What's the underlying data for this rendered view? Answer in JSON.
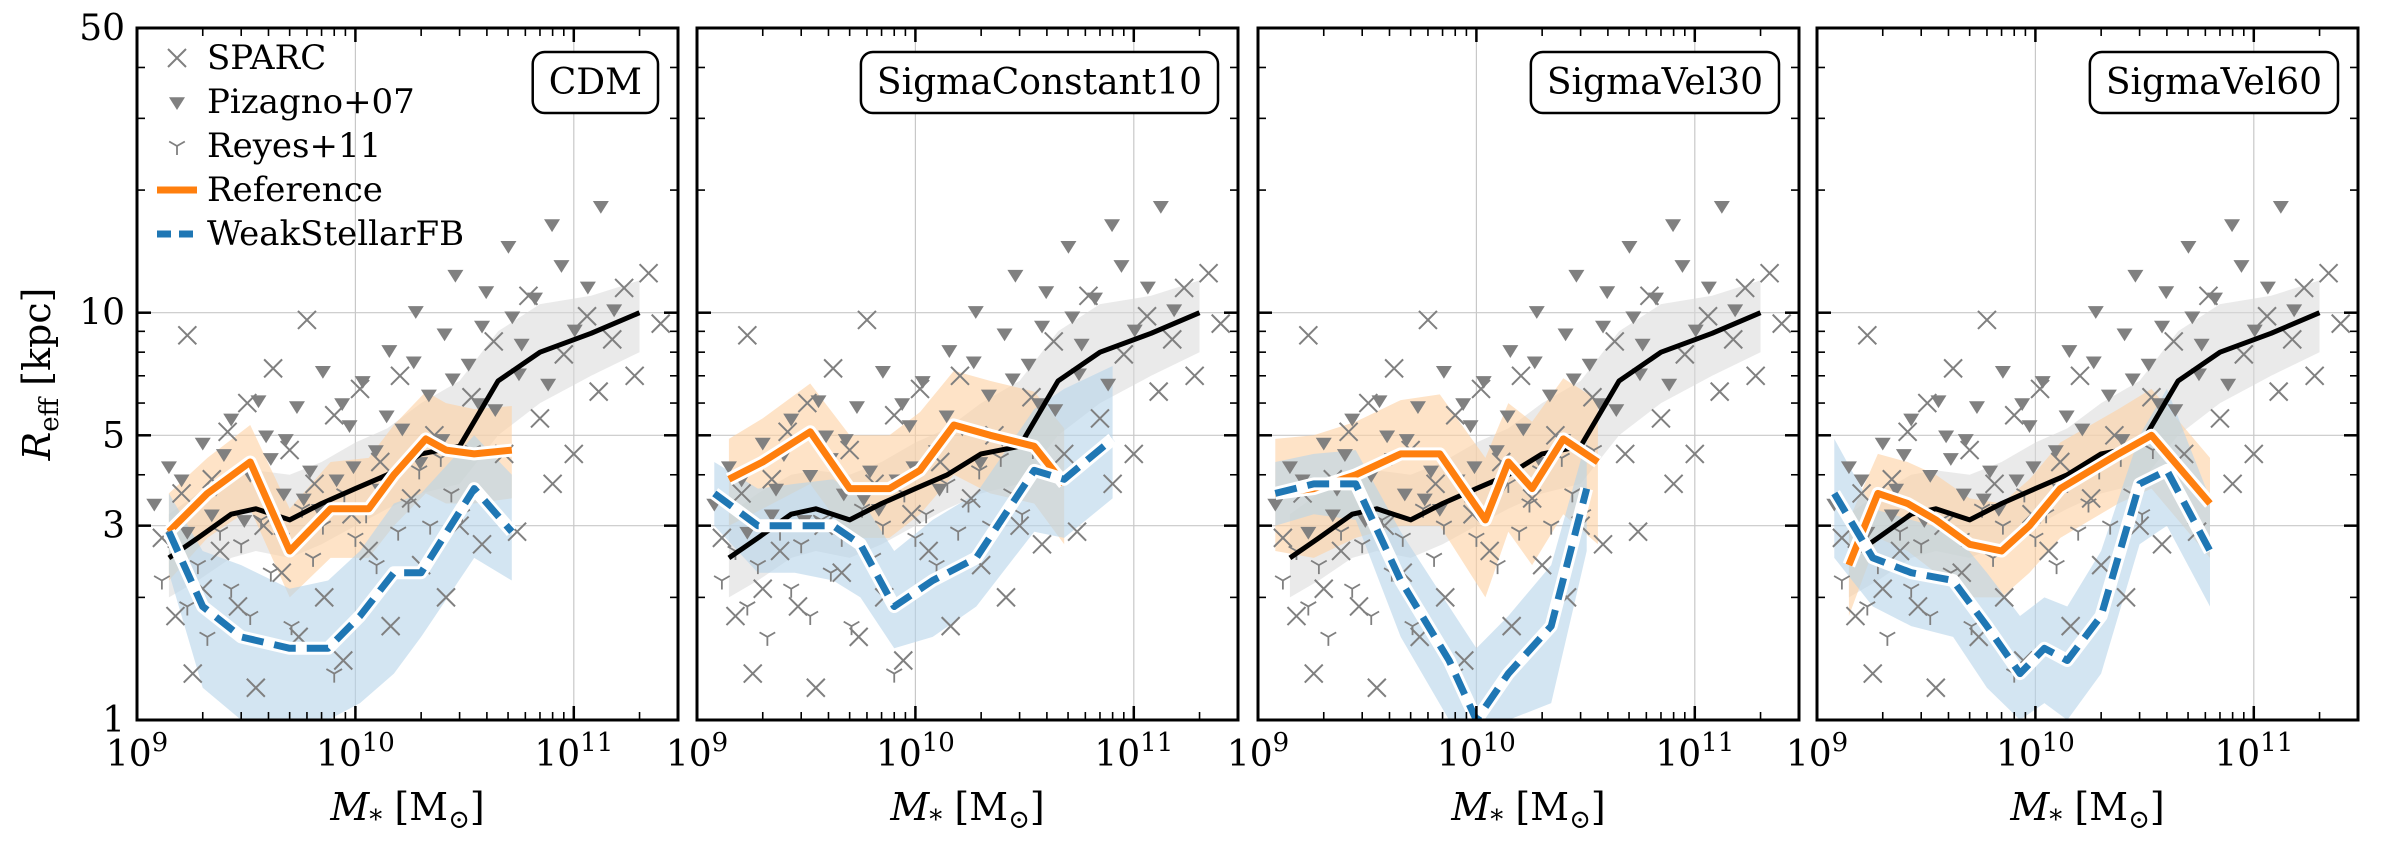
{
  "figure": {
    "ylabel": "R",
    "ylabel_sub": "eff",
    "ylabel_unit": "[kpc]",
    "xlabel_main": "M",
    "xlabel_sub": "*",
    "xlabel_unit": "[M",
    "xlabel_unit_sym": "⊙",
    "xlabel_unit_close": "]"
  },
  "legend": [
    {
      "label": "SPARC",
      "marker": "x",
      "color": "#808080"
    },
    {
      "label": "Pizagno+07",
      "marker": "triangle-down",
      "color": "#808080"
    },
    {
      "label": "Reyes+11",
      "marker": "tri-up",
      "color": "#808080"
    },
    {
      "label": "Reference",
      "marker": "line",
      "color": "#ff7f0e"
    },
    {
      "label": "WeakStellarFB",
      "marker": "dashed-line",
      "color": "#1f77b4"
    }
  ],
  "colors": {
    "reference": "#ff7f0e",
    "weakfb": "#1f77b4",
    "observed": "#000000",
    "scatter": "#808080",
    "ref_band": "#fdd0a2",
    "weak_band": "#b5d3ea",
    "obs_band": "#d9d9d9"
  },
  "chart_data": {
    "type": "line",
    "xscale": "log",
    "yscale": "log",
    "xlim": [
      1000000000.0,
      300000000000.0
    ],
    "ylim": [
      1,
      50
    ],
    "xticks": [
      {
        "value": 1000000000.0,
        "label": "10^9"
      },
      {
        "value": 10000000000.0,
        "label": "10^10"
      },
      {
        "value": 100000000000.0,
        "label": "10^11"
      }
    ],
    "yticks": [
      {
        "value": 1,
        "label": "1"
      },
      {
        "value": 3,
        "label": "3"
      },
      {
        "value": 5,
        "label": "5"
      },
      {
        "value": 10,
        "label": "10"
      },
      {
        "value": 50,
        "label": "50"
      }
    ],
    "observed_median": {
      "x": [
        1400000000.0,
        1900000000.0,
        2700000000.0,
        3500000000.0,
        5000000000.0,
        7000000000.0,
        10000000000.0,
        14000000000.0,
        20000000000.0,
        30000000000.0,
        45000000000.0,
        70000000000.0,
        120000000000.0,
        200000000000.0
      ],
      "y": [
        2.5,
        2.8,
        3.2,
        3.3,
        3.1,
        3.4,
        3.7,
        4.0,
        4.5,
        4.7,
        6.8,
        8.0,
        8.9,
        10.0
      ],
      "band_lo": [
        2.0,
        2.2,
        2.5,
        2.6,
        2.5,
        2.7,
        3.0,
        3.3,
        3.6,
        3.8,
        5.0,
        6.0,
        7.0,
        8.0
      ],
      "band_hi": [
        3.2,
        3.6,
        4.0,
        4.1,
        4.0,
        4.3,
        4.8,
        5.2,
        6.0,
        6.8,
        9.0,
        10.5,
        11.0,
        12.0
      ]
    },
    "scatter": {
      "sparc": [
        [
          1300000000.0,
          2.8
        ],
        [
          1500000000.0,
          1.8
        ],
        [
          1600000000.0,
          3.6
        ],
        [
          1700000000.0,
          8.8
        ],
        [
          1800000000.0,
          1.3
        ],
        [
          2000000000.0,
          2.1
        ],
        [
          2200000000.0,
          3.9
        ],
        [
          2400000000.0,
          2.6
        ],
        [
          2600000000.0,
          5.1
        ],
        [
          2900000000.0,
          1.9
        ],
        [
          3200000000.0,
          6.0
        ],
        [
          3500000000.0,
          1.2
        ],
        [
          3800000000.0,
          3.0
        ],
        [
          4200000000.0,
          7.3
        ],
        [
          4600000000.0,
          2.3
        ],
        [
          5000000000.0,
          4.6
        ],
        [
          5500000000.0,
          1.6
        ],
        [
          6000000000.0,
          9.6
        ],
        [
          6500000000.0,
          3.8
        ],
        [
          7200000000.0,
          2.0
        ],
        [
          8000000000.0,
          5.6
        ],
        [
          8800000000.0,
          1.4
        ],
        [
          9600000000.0,
          3.2
        ],
        [
          10500000000.0,
          6.5
        ],
        [
          11500000000.0,
          2.6
        ],
        [
          13000000000.0,
          4.3
        ],
        [
          14500000000.0,
          1.7
        ],
        [
          16000000000.0,
          7.0
        ],
        [
          18000000000.0,
          3.5
        ],
        [
          20000000000.0,
          2.4
        ],
        [
          23000000000.0,
          5.0
        ],
        [
          26000000000.0,
          2.0
        ],
        [
          30000000000.0,
          3.0
        ],
        [
          34000000000.0,
          6.2
        ],
        [
          38000000000.0,
          2.7
        ],
        [
          43000000000.0,
          8.5
        ],
        [
          48000000000.0,
          4.5
        ],
        [
          55000000000.0,
          2.9
        ],
        [
          62000000000.0,
          11.0
        ],
        [
          70000000000.0,
          5.5
        ],
        [
          80000000000.0,
          3.8
        ],
        [
          90000000000.0,
          7.9
        ],
        [
          100000000000.0,
          4.5
        ],
        [
          115000000000.0,
          9.8
        ],
        [
          130000000000.0,
          6.4
        ],
        [
          150000000000.0,
          8.6
        ],
        [
          170000000000.0,
          11.5
        ],
        [
          190000000000.0,
          7.0
        ],
        [
          220000000000.0,
          12.5
        ],
        [
          250000000000.0,
          9.4
        ]
      ],
      "pizagno": [
        [
          1200000000.0,
          3.4
        ],
        [
          1400000000.0,
          4.2
        ],
        [
          1700000000.0,
          2.9
        ],
        [
          2000000000.0,
          4.8
        ],
        [
          2300000000.0,
          3.7
        ],
        [
          2700000000.0,
          5.5
        ],
        [
          3100000000.0,
          3.1
        ],
        [
          3600000000.0,
          6.1
        ],
        [
          4100000000.0,
          4.4
        ],
        [
          4700000000.0,
          3.6
        ],
        [
          5400000000.0,
          5.9
        ],
        [
          6200000000.0,
          4.1
        ],
        [
          7100000000.0,
          7.2
        ],
        [
          8200000000.0,
          3.9
        ],
        [
          9400000000.0,
          5.3
        ],
        [
          10800000000.0,
          6.8
        ],
        [
          12400000000.0,
          4.6
        ],
        [
          14300000000.0,
          8.1
        ],
        [
          16400000000.0,
          5.2
        ],
        [
          18900000000.0,
          10.1
        ],
        [
          21700000000.0,
          6.3
        ],
        [
          25000000000.0,
          4.9
        ],
        [
          28700000000.0,
          12.4
        ],
        [
          33000000000.0,
          7.5
        ],
        [
          38000000000.0,
          9.3
        ],
        [
          43700000000.0,
          5.8
        ],
        [
          50200000000.0,
          14.6
        ],
        [
          57700000000.0,
          8.4
        ],
        [
          66400000000.0,
          10.9
        ],
        [
          76300000000.0,
          6.7
        ],
        [
          87800000000.0,
          13.1
        ],
        [
          101000000000.0,
          9.1
        ],
        [
          116000000000.0,
          11.6
        ],
        [
          133000000000.0,
          18.3
        ],
        [
          153000000000.0,
          10.2
        ],
        [
          2200000000.0,
          3.2
        ],
        [
          3300000000.0,
          4.0
        ],
        [
          4800000000.0,
          4.9
        ],
        [
          6800000000.0,
          3.3
        ],
        [
          9800000000.0,
          4.2
        ],
        [
          13900000000.0,
          5.6
        ],
        [
          19800000000.0,
          4.3
        ],
        [
          27900000000.0,
          6.9
        ],
        [
          39700000000.0,
          11.3
        ],
        [
          56100000000.0,
          7.1
        ],
        [
          79500000000.0,
          16.5
        ],
        [
          1600000000.0,
          3.9
        ],
        [
          2500000000.0,
          4.5
        ],
        [
          3900000000.0,
          5.0
        ],
        [
          5800000000.0,
          3.5
        ],
        [
          8700000000.0,
          6.0
        ],
        [
          12900000000.0,
          3.7
        ],
        [
          18500000000.0,
          7.6
        ],
        [
          25600000000.0,
          8.9
        ],
        [
          36800000000.0,
          6.0
        ],
        [
          52300000000.0,
          9.8
        ]
      ],
      "reyes": [
        [
          1300000000.0,
          2.2
        ],
        [
          1500000000.0,
          2.6
        ],
        [
          1700000000.0,
          1.9
        ],
        [
          1900000000.0,
          2.4
        ],
        [
          2100000000.0,
          1.6
        ],
        [
          2400000000.0,
          2.9
        ],
        [
          2700000000.0,
          2.1
        ],
        [
          3000000000.0,
          2.7
        ],
        [
          3300000000.0,
          1.8
        ],
        [
          3700000000.0,
          3.1
        ],
        [
          4100000000.0,
          2.3
        ],
        [
          4600000000.0,
          2.8
        ],
        [
          5100000000.0,
          1.7
        ],
        [
          5700000000.0,
          3.3
        ],
        [
          6400000000.0,
          2.5
        ],
        [
          7100000000.0,
          3.0
        ],
        [
          8000000000.0,
          1.3
        ],
        [
          8900000000.0,
          3.6
        ],
        [
          10000000000.0,
          2.8
        ],
        [
          11200000000.0,
          3.2
        ],
        [
          12500000000.0,
          2.4
        ],
        [
          14000000000.0,
          3.8
        ],
        [
          15700000000.0,
          2.9
        ],
        [
          17500000000.0,
          3.4
        ],
        [
          19600000000.0,
          4.1
        ],
        [
          22000000000.0,
          3.0
        ],
        [
          24600000000.0,
          4.4
        ],
        [
          27500000000.0,
          3.6
        ],
        [
          30800000000.0,
          3.2
        ],
        [
          34500000000.0,
          4.6
        ]
      ]
    },
    "panels": [
      {
        "title": "CDM",
        "reference": {
          "x": [
            1400000000.0,
            2100000000.0,
            3300000000.0,
            5000000000.0,
            7700000000.0,
            11500000000.0,
            15000000000.0,
            21000000000.0,
            26000000000.0,
            35000000000.0,
            52000000000.0
          ],
          "y": [
            2.9,
            3.6,
            4.3,
            2.6,
            3.3,
            3.3,
            4.0,
            4.9,
            4.6,
            4.5,
            4.6
          ],
          "band_lo": [
            2.2,
            2.8,
            3.3,
            2.0,
            2.5,
            2.5,
            3.0,
            3.6,
            3.4,
            3.4,
            3.5
          ],
          "band_hi": [
            3.6,
            4.4,
            5.3,
            3.3,
            4.3,
            4.4,
            5.3,
            6.4,
            6.0,
            5.8,
            5.9
          ]
        },
        "weakfb": {
          "x": [
            1400000000.0,
            2000000000.0,
            3000000000.0,
            5000000000.0,
            7500000000.0,
            10500000000.0,
            15000000000.0,
            20000000000.0,
            35000000000.0,
            52000000000.0
          ],
          "y": [
            2.9,
            1.9,
            1.6,
            1.5,
            1.5,
            1.8,
            2.3,
            2.3,
            3.7,
            2.9
          ],
          "band_lo": [
            2.3,
            1.2,
            1.0,
            1.0,
            1.0,
            1.1,
            1.3,
            1.6,
            2.5,
            2.2
          ],
          "band_hi": [
            3.6,
            2.6,
            2.4,
            2.1,
            2.2,
            2.6,
            3.4,
            3.6,
            5.0,
            4.0
          ]
        }
      },
      {
        "title": "SigmaConstant10",
        "reference": {
          "x": [
            1400000000.0,
            2000000000.0,
            3300000000.0,
            5000000000.0,
            7600000000.0,
            10500000000.0,
            15000000000.0,
            22000000000.0,
            35000000000.0,
            48000000000.0
          ],
          "y": [
            3.9,
            4.3,
            5.1,
            3.7,
            3.7,
            4.1,
            5.3,
            5.0,
            4.7,
            3.8
          ],
          "band_lo": [
            3.0,
            3.3,
            3.8,
            2.8,
            2.8,
            3.2,
            4.0,
            3.6,
            3.4,
            2.7
          ],
          "band_hi": [
            4.9,
            5.5,
            6.7,
            5.0,
            5.0,
            5.7,
            7.2,
            6.8,
            6.4,
            5.2
          ]
        },
        "weakfb": {
          "x": [
            1200000000.0,
            1900000000.0,
            2800000000.0,
            4200000000.0,
            5600000000.0,
            8000000000.0,
            12000000000.0,
            19000000000.0,
            35000000000.0,
            48000000000.0,
            80000000000.0
          ],
          "y": [
            3.6,
            3.0,
            3.0,
            3.0,
            2.7,
            1.9,
            2.2,
            2.5,
            4.1,
            3.9,
            4.9
          ],
          "band_lo": [
            3.0,
            2.3,
            2.3,
            2.2,
            2.0,
            1.5,
            1.6,
            1.9,
            2.9,
            2.8,
            3.5
          ],
          "band_hi": [
            4.3,
            3.7,
            3.8,
            3.9,
            3.5,
            2.6,
            3.1,
            3.6,
            5.8,
            6.5,
            7.4
          ]
        }
      },
      {
        "title": "SigmaVel30",
        "reference": {
          "x": [
            1200000000.0,
            1800000000.0,
            2800000000.0,
            4500000000.0,
            6800000000.0,
            11000000000.0,
            14000000000.0,
            18000000000.0,
            25000000000.0,
            36000000000.0
          ],
          "y": [
            3.6,
            3.7,
            4.0,
            4.5,
            4.5,
            3.1,
            4.3,
            3.7,
            4.9,
            4.3
          ],
          "band_lo": [
            2.6,
            2.5,
            2.8,
            3.0,
            3.0,
            2.0,
            2.9,
            2.4,
            3.2,
            2.7
          ],
          "band_hi": [
            4.9,
            5.0,
            5.4,
            6.1,
            6.3,
            4.4,
            6.0,
            5.4,
            6.9,
            6.1
          ]
        },
        "weakfb": {
          "x": [
            1200000000.0,
            1800000000.0,
            2800000000.0,
            4500000000.0,
            7500000000.0,
            10000000000.0,
            14000000000.0,
            22000000000.0,
            32000000000.0
          ],
          "y": [
            3.6,
            3.8,
            3.8,
            2.2,
            1.4,
            1.0,
            1.3,
            1.7,
            3.7
          ],
          "band_lo": [
            3.0,
            3.2,
            3.1,
            1.6,
            1.0,
            1.0,
            1.0,
            1.1,
            2.6
          ],
          "band_hi": [
            4.3,
            4.5,
            4.6,
            2.9,
            1.9,
            1.5,
            1.8,
            2.4,
            4.9
          ]
        }
      },
      {
        "title": "SigmaVel60",
        "reference": {
          "x": [
            1400000000.0,
            1900000000.0,
            2600000000.0,
            3500000000.0,
            5000000000.0,
            7000000000.0,
            9400000000.0,
            13000000000.0,
            24000000000.0,
            34000000000.0,
            63000000000.0
          ],
          "y": [
            2.4,
            3.6,
            3.4,
            3.1,
            2.7,
            2.6,
            3.0,
            3.7,
            4.5,
            5.0,
            3.4
          ],
          "band_lo": [
            1.8,
            2.8,
            2.6,
            2.3,
            2.0,
            2.0,
            2.3,
            2.8,
            3.4,
            3.7,
            2.5
          ],
          "band_hi": [
            3.1,
            4.5,
            4.3,
            4.0,
            3.5,
            3.4,
            3.9,
            4.8,
            5.8,
            6.5,
            4.4
          ]
        },
        "weakfb": {
          "x": [
            1200000000.0,
            1800000000.0,
            2700000000.0,
            4200000000.0,
            6000000000.0,
            8500000000.0,
            11000000000.0,
            14000000000.0,
            20000000000.0,
            30000000000.0,
            40000000000.0,
            63000000000.0
          ],
          "y": [
            3.6,
            2.5,
            2.3,
            2.2,
            1.7,
            1.3,
            1.5,
            1.4,
            1.8,
            3.8,
            4.1,
            2.6
          ],
          "band_lo": [
            2.5,
            1.9,
            1.7,
            1.6,
            1.2,
            1.0,
            1.1,
            1.0,
            1.3,
            2.7,
            3.0,
            1.9
          ],
          "band_hi": [
            4.9,
            3.3,
            3.1,
            2.9,
            2.3,
            1.8,
            2.0,
            1.9,
            2.6,
            5.0,
            6.5,
            3.5
          ]
        }
      }
    ]
  }
}
